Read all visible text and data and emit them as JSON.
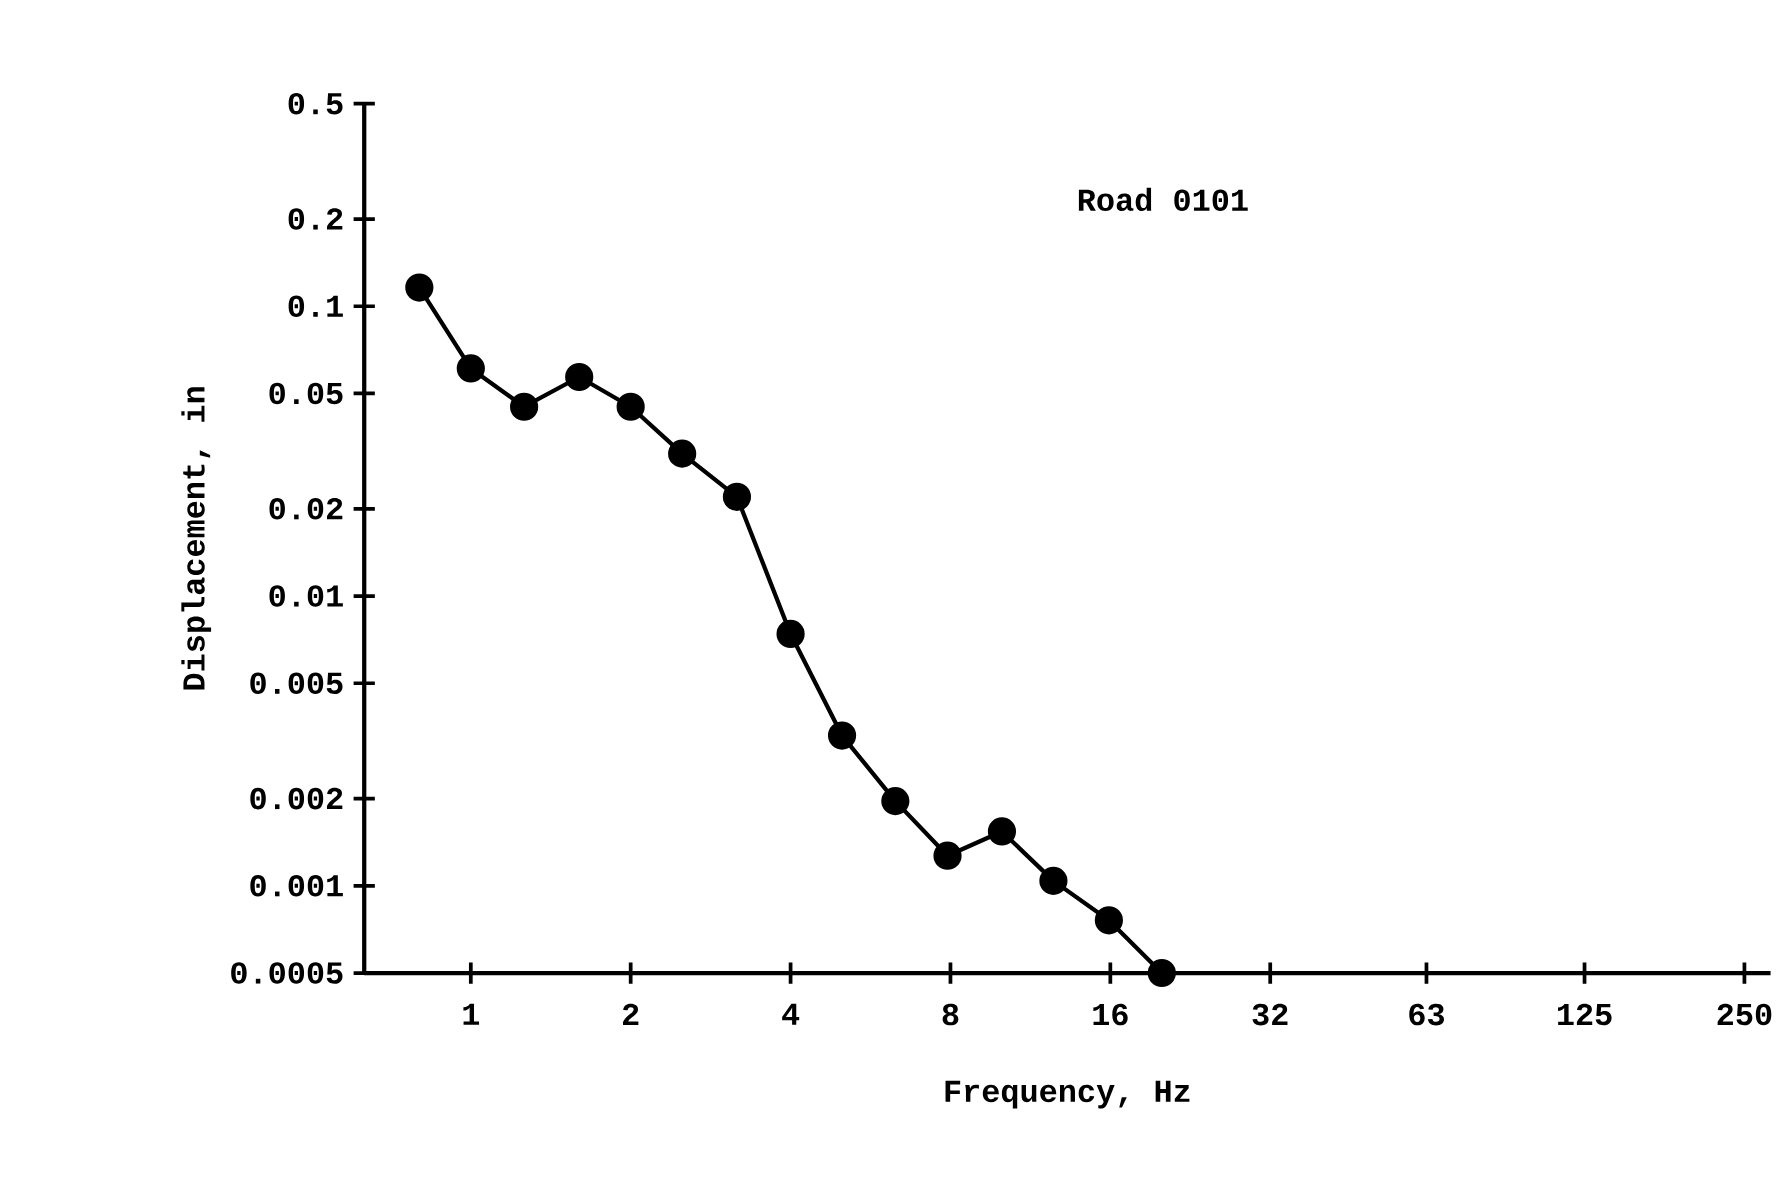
{
  "chart_data": {
    "type": "line",
    "title": "Road 0101",
    "xlabel": "Frequency, Hz",
    "ylabel": "Displacement, in",
    "log": "xy",
    "marker": "circle",
    "line_style": "solid",
    "grid": false,
    "xlim": [
      0.63,
      280
    ],
    "ylim": [
      0.0005,
      0.5
    ],
    "xticks": [
      1,
      2,
      4,
      8,
      16,
      32,
      63,
      125,
      250
    ],
    "yticks": [
      0.0005,
      0.001,
      0.002,
      0.005,
      0.01,
      0.02,
      0.05,
      0.1,
      0.2,
      0.5
    ],
    "series": [
      {
        "color": "#000000",
        "x": [
          0.8,
          1.0,
          1.26,
          1.6,
          2.0,
          2.5,
          3.17,
          4.0,
          5.0,
          6.3,
          7.9,
          10,
          12.5,
          15.9,
          20
        ],
        "values": [
          0.116,
          0.061,
          0.045,
          0.057,
          0.045,
          0.031,
          0.022,
          0.0074,
          0.0033,
          0.00196,
          0.00127,
          0.00154,
          0.00104,
          0.00076,
          0.0005
        ]
      }
    ]
  }
}
